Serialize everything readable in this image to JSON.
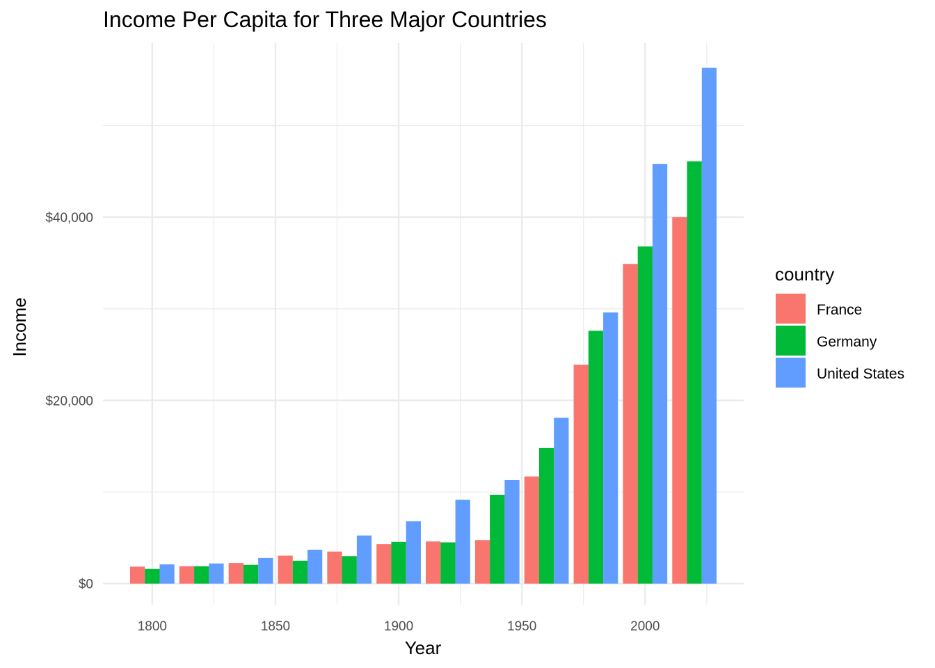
{
  "chart_data": {
    "type": "bar",
    "title": "Income Per Capita for Three Major Countries",
    "xlabel": "Year",
    "ylabel": "Income",
    "legend_title": "country",
    "legend_position": "right",
    "grid": true,
    "x_ticks": [
      "1800",
      "1850",
      "1900",
      "1950",
      "2000"
    ],
    "y_ticks": [
      "$0",
      "$20,000",
      "$40,000"
    ],
    "xlim": [
      1780,
      2040
    ],
    "ylim": [
      -2300,
      59000
    ],
    "bar_group_width": 18,
    "x": [
      1800,
      1820,
      1840,
      1860,
      1880,
      1900,
      1920,
      1940,
      1960,
      1980,
      2000,
      2020
    ],
    "series": [
      {
        "name": "France",
        "color": "#F8766D",
        "values": [
          1850,
          1900,
          2250,
          3050,
          3500,
          4300,
          4600,
          4750,
          11700,
          23900,
          34900,
          40000
        ]
      },
      {
        "name": "Germany",
        "color": "#00BA38",
        "values": [
          1600,
          1900,
          2050,
          2500,
          3000,
          4550,
          4500,
          9700,
          14800,
          27600,
          36800,
          46100
        ]
      },
      {
        "name": "United States",
        "color": "#619CFF",
        "values": [
          2100,
          2200,
          2800,
          3700,
          5250,
          6800,
          9150,
          11300,
          18100,
          29600,
          45800,
          56300
        ]
      }
    ]
  }
}
